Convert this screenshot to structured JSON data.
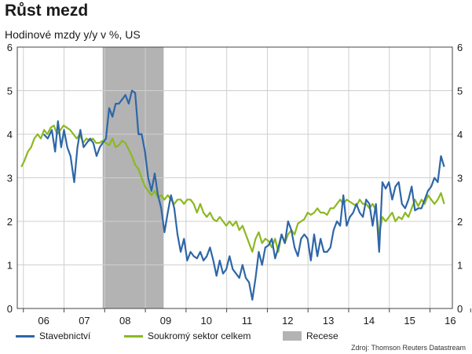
{
  "chart_data": {
    "type": "line",
    "title": "Růst mezd",
    "subtitle": "Hodinové mzdy y/y v %, US",
    "ylim": [
      0,
      6
    ],
    "y_ticks": [
      "0",
      "1",
      "2",
      "3",
      "4",
      "5",
      "6"
    ],
    "x_ticks": [
      "06",
      "07",
      "08",
      "09",
      "10",
      "11",
      "12",
      "13",
      "14",
      "15",
      "16"
    ],
    "x_range": [
      2005.85,
      2016.55
    ],
    "recession": {
      "label": "Recese",
      "start": 2007.95,
      "end": 2009.45,
      "color": "#b3b3b3"
    },
    "series": [
      {
        "name": "Stavebnictví",
        "color": "#2e66a8",
        "points": [
          [
            2006.5,
            4.0
          ],
          [
            2006.6,
            3.9
          ],
          [
            2006.7,
            4.1
          ],
          [
            2006.78,
            3.6
          ],
          [
            2006.85,
            4.3
          ],
          [
            2006.93,
            3.7
          ],
          [
            2007.0,
            4.1
          ],
          [
            2007.08,
            3.7
          ],
          [
            2007.16,
            3.5
          ],
          [
            2007.25,
            2.9
          ],
          [
            2007.33,
            3.7
          ],
          [
            2007.4,
            4.1
          ],
          [
            2007.48,
            3.7
          ],
          [
            2007.56,
            3.8
          ],
          [
            2007.64,
            3.9
          ],
          [
            2007.72,
            3.8
          ],
          [
            2007.8,
            3.5
          ],
          [
            2007.88,
            3.7
          ],
          [
            2007.95,
            3.8
          ],
          [
            2008.03,
            3.9
          ],
          [
            2008.11,
            4.6
          ],
          [
            2008.19,
            4.4
          ],
          [
            2008.27,
            4.7
          ],
          [
            2008.35,
            4.7
          ],
          [
            2008.43,
            4.8
          ],
          [
            2008.51,
            4.9
          ],
          [
            2008.59,
            4.7
          ],
          [
            2008.67,
            5.0
          ],
          [
            2008.75,
            4.95
          ],
          [
            2008.83,
            4.0
          ],
          [
            2008.91,
            4.0
          ],
          [
            2008.99,
            3.6
          ],
          [
            2009.07,
            3.0
          ],
          [
            2009.15,
            2.7
          ],
          [
            2009.23,
            3.1
          ],
          [
            2009.31,
            2.6
          ],
          [
            2009.39,
            2.3
          ],
          [
            2009.47,
            1.75
          ],
          [
            2009.55,
            2.2
          ],
          [
            2009.63,
            2.6
          ],
          [
            2009.71,
            2.3
          ],
          [
            2009.79,
            1.7
          ],
          [
            2009.87,
            1.3
          ],
          [
            2009.95,
            1.6
          ],
          [
            2010.03,
            1.1
          ],
          [
            2010.11,
            1.3
          ],
          [
            2010.19,
            1.2
          ],
          [
            2010.27,
            1.15
          ],
          [
            2010.35,
            1.3
          ],
          [
            2010.43,
            1.1
          ],
          [
            2010.51,
            1.2
          ],
          [
            2010.59,
            1.4
          ],
          [
            2010.67,
            1.1
          ],
          [
            2010.75,
            0.75
          ],
          [
            2010.83,
            1.1
          ],
          [
            2010.91,
            0.8
          ],
          [
            2010.99,
            0.9
          ],
          [
            2011.07,
            1.2
          ],
          [
            2011.15,
            0.9
          ],
          [
            2011.23,
            0.8
          ],
          [
            2011.31,
            0.7
          ],
          [
            2011.39,
            1.0
          ],
          [
            2011.47,
            0.7
          ],
          [
            2011.55,
            0.6
          ],
          [
            2011.63,
            0.2
          ],
          [
            2011.71,
            0.7
          ],
          [
            2011.79,
            1.3
          ],
          [
            2011.87,
            1.0
          ],
          [
            2011.95,
            1.4
          ],
          [
            2012.03,
            1.45
          ],
          [
            2012.11,
            1.6
          ],
          [
            2012.19,
            1.15
          ],
          [
            2012.27,
            1.4
          ],
          [
            2012.35,
            1.7
          ],
          [
            2012.43,
            1.5
          ],
          [
            2012.51,
            2.0
          ],
          [
            2012.59,
            1.8
          ],
          [
            2012.67,
            1.4
          ],
          [
            2012.75,
            1.2
          ],
          [
            2012.83,
            1.6
          ],
          [
            2012.91,
            1.7
          ],
          [
            2012.99,
            1.6
          ],
          [
            2013.07,
            1.1
          ],
          [
            2013.15,
            1.7
          ],
          [
            2013.23,
            1.2
          ],
          [
            2013.31,
            1.6
          ],
          [
            2013.39,
            1.3
          ],
          [
            2013.47,
            1.3
          ],
          [
            2013.55,
            1.4
          ],
          [
            2013.63,
            1.8
          ],
          [
            2013.71,
            2.0
          ],
          [
            2013.79,
            1.9
          ],
          [
            2013.87,
            2.6
          ],
          [
            2013.95,
            1.9
          ],
          [
            2014.03,
            2.1
          ],
          [
            2014.11,
            2.2
          ],
          [
            2014.19,
            2.4
          ],
          [
            2014.27,
            2.2
          ],
          [
            2014.35,
            2.1
          ],
          [
            2014.43,
            2.5
          ],
          [
            2014.51,
            2.4
          ],
          [
            2014.59,
            1.9
          ],
          [
            2014.67,
            2.4
          ],
          [
            2014.75,
            1.3
          ],
          [
            2014.83,
            2.9
          ],
          [
            2014.91,
            2.75
          ],
          [
            2014.99,
            2.9
          ],
          [
            2015.07,
            2.5
          ],
          [
            2015.15,
            2.8
          ],
          [
            2015.23,
            2.9
          ],
          [
            2015.31,
            2.4
          ],
          [
            2015.39,
            2.3
          ],
          [
            2015.47,
            2.5
          ],
          [
            2015.55,
            2.8
          ],
          [
            2015.63,
            2.25
          ],
          [
            2015.71,
            2.3
          ],
          [
            2015.79,
            2.3
          ],
          [
            2015.87,
            2.5
          ],
          [
            2015.95,
            2.7
          ],
          [
            2016.03,
            2.8
          ],
          [
            2016.11,
            3.0
          ],
          [
            2016.19,
            2.9
          ],
          [
            2016.27,
            3.5
          ],
          [
            2016.35,
            3.25
          ]
        ]
      },
      {
        "name": "Soukromý sektor celkem",
        "color": "#8cb820",
        "points": [
          [
            2005.95,
            3.25
          ],
          [
            2006.03,
            3.4
          ],
          [
            2006.11,
            3.6
          ],
          [
            2006.19,
            3.7
          ],
          [
            2006.27,
            3.9
          ],
          [
            2006.35,
            4.0
          ],
          [
            2006.43,
            3.9
          ],
          [
            2006.51,
            4.1
          ],
          [
            2006.59,
            4.0
          ],
          [
            2006.67,
            4.15
          ],
          [
            2006.75,
            4.2
          ],
          [
            2006.83,
            4.0
          ],
          [
            2006.91,
            4.1
          ],
          [
            2006.99,
            4.2
          ],
          [
            2007.07,
            4.15
          ],
          [
            2007.15,
            4.1
          ],
          [
            2007.23,
            4.0
          ],
          [
            2007.31,
            3.9
          ],
          [
            2007.39,
            4.0
          ],
          [
            2007.47,
            3.8
          ],
          [
            2007.55,
            3.9
          ],
          [
            2007.63,
            3.85
          ],
          [
            2007.71,
            3.9
          ],
          [
            2007.79,
            3.8
          ],
          [
            2007.87,
            3.8
          ],
          [
            2007.95,
            3.85
          ],
          [
            2008.03,
            3.8
          ],
          [
            2008.11,
            3.75
          ],
          [
            2008.19,
            3.9
          ],
          [
            2008.27,
            3.7
          ],
          [
            2008.35,
            3.75
          ],
          [
            2008.43,
            3.85
          ],
          [
            2008.51,
            3.8
          ],
          [
            2008.59,
            3.65
          ],
          [
            2008.67,
            3.5
          ],
          [
            2008.75,
            3.3
          ],
          [
            2008.83,
            3.2
          ],
          [
            2008.91,
            3.0
          ],
          [
            2008.99,
            2.8
          ],
          [
            2009.07,
            2.7
          ],
          [
            2009.15,
            2.6
          ],
          [
            2009.23,
            2.7
          ],
          [
            2009.31,
            2.55
          ],
          [
            2009.39,
            2.6
          ],
          [
            2009.47,
            2.5
          ],
          [
            2009.55,
            2.6
          ],
          [
            2009.63,
            2.5
          ],
          [
            2009.71,
            2.4
          ],
          [
            2009.79,
            2.5
          ],
          [
            2009.87,
            2.5
          ],
          [
            2009.95,
            2.4
          ],
          [
            2010.03,
            2.5
          ],
          [
            2010.11,
            2.5
          ],
          [
            2010.19,
            2.4
          ],
          [
            2010.27,
            2.2
          ],
          [
            2010.35,
            2.4
          ],
          [
            2010.43,
            2.2
          ],
          [
            2010.51,
            2.1
          ],
          [
            2010.59,
            2.2
          ],
          [
            2010.67,
            2.05
          ],
          [
            2010.75,
            2.0
          ],
          [
            2010.83,
            2.1
          ],
          [
            2010.91,
            2.0
          ],
          [
            2010.99,
            1.9
          ],
          [
            2011.07,
            2.0
          ],
          [
            2011.15,
            1.9
          ],
          [
            2011.23,
            2.0
          ],
          [
            2011.31,
            1.8
          ],
          [
            2011.39,
            1.9
          ],
          [
            2011.47,
            1.7
          ],
          [
            2011.55,
            1.5
          ],
          [
            2011.63,
            1.3
          ],
          [
            2011.71,
            1.6
          ],
          [
            2011.79,
            1.75
          ],
          [
            2011.87,
            1.5
          ],
          [
            2011.95,
            1.6
          ],
          [
            2012.03,
            1.55
          ],
          [
            2012.11,
            1.4
          ],
          [
            2012.19,
            1.6
          ],
          [
            2012.27,
            1.3
          ],
          [
            2012.35,
            1.7
          ],
          [
            2012.43,
            1.5
          ],
          [
            2012.51,
            1.7
          ],
          [
            2012.59,
            1.8
          ],
          [
            2012.67,
            1.7
          ],
          [
            2012.75,
            1.95
          ],
          [
            2012.83,
            2.0
          ],
          [
            2012.91,
            2.05
          ],
          [
            2012.99,
            2.2
          ],
          [
            2013.07,
            2.15
          ],
          [
            2013.15,
            2.2
          ],
          [
            2013.23,
            2.3
          ],
          [
            2013.31,
            2.2
          ],
          [
            2013.39,
            2.2
          ],
          [
            2013.47,
            2.15
          ],
          [
            2013.55,
            2.3
          ],
          [
            2013.63,
            2.3
          ],
          [
            2013.71,
            2.4
          ],
          [
            2013.79,
            2.5
          ],
          [
            2013.87,
            2.4
          ],
          [
            2013.95,
            2.5
          ],
          [
            2014.03,
            2.45
          ],
          [
            2014.11,
            2.4
          ],
          [
            2014.19,
            2.35
          ],
          [
            2014.27,
            2.5
          ],
          [
            2014.35,
            2.4
          ],
          [
            2014.43,
            2.4
          ],
          [
            2014.51,
            2.3
          ],
          [
            2014.59,
            2.4
          ],
          [
            2014.67,
            2.25
          ],
          [
            2014.75,
            1.7
          ],
          [
            2014.83,
            2.1
          ],
          [
            2014.91,
            2.0
          ],
          [
            2014.99,
            2.1
          ],
          [
            2015.07,
            2.2
          ],
          [
            2015.15,
            2.0
          ],
          [
            2015.23,
            2.1
          ],
          [
            2015.31,
            2.05
          ],
          [
            2015.39,
            2.2
          ],
          [
            2015.47,
            2.1
          ],
          [
            2015.55,
            2.3
          ],
          [
            2015.63,
            2.5
          ],
          [
            2015.71,
            2.35
          ],
          [
            2015.79,
            2.5
          ],
          [
            2015.87,
            2.4
          ],
          [
            2015.95,
            2.6
          ],
          [
            2016.03,
            2.5
          ],
          [
            2016.11,
            2.4
          ],
          [
            2016.19,
            2.5
          ],
          [
            2016.27,
            2.65
          ],
          [
            2016.35,
            2.4
          ]
        ]
      }
    ],
    "legend_placement": "bottom",
    "grid": true
  },
  "source": "Zdroj: Thomson Reuters Datastream"
}
